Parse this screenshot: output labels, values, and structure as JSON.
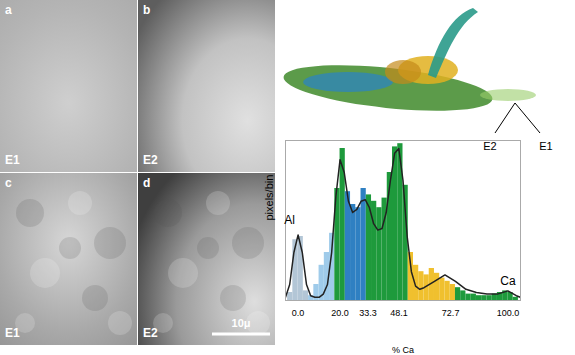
{
  "figure": {
    "panels": [
      {
        "letter": "a",
        "label": "E1"
      },
      {
        "letter": "b",
        "label": "E2"
      },
      {
        "letter": "c",
        "label": "E1"
      },
      {
        "letter": "d",
        "label": "E2"
      }
    ],
    "scale_bar": "10μ",
    "projection_labels": [
      "E2",
      "E1"
    ]
  },
  "chart_data": {
    "type": "histogram",
    "xlabel": "% Ca",
    "ylabel": "pixels/bin",
    "xlim": [
      -6,
      106
    ],
    "ylim": [
      0,
      100
    ],
    "xticks": [
      {
        "value": 0,
        "label": "0.0"
      },
      {
        "value": 20,
        "label": "20.0"
      },
      {
        "value": 33.3,
        "label": "33.3"
      },
      {
        "value": 48.1,
        "label": "48.1"
      },
      {
        "value": 72.7,
        "label": "72.7"
      },
      {
        "value": 100,
        "label": "100.0"
      }
    ],
    "tick_labels": "x",
    "bins": [
      -5,
      -2.5,
      0,
      2.5,
      5,
      7.5,
      10,
      12.5,
      15,
      17.5,
      20,
      22.5,
      25,
      27.5,
      30,
      32.5,
      35,
      37.5,
      40,
      42.5,
      45,
      47.5,
      50,
      52.5,
      55,
      57.5,
      60,
      62.5,
      65,
      67.5,
      70,
      72.5,
      75,
      77.5,
      80,
      82.5,
      85,
      87.5,
      90,
      92.5,
      95,
      97.5,
      100,
      102.5,
      105
    ],
    "counts": [
      5,
      38,
      40,
      6,
      3,
      10,
      22,
      30,
      42,
      70,
      95,
      68,
      60,
      58,
      70,
      66,
      62,
      58,
      64,
      80,
      96,
      98,
      72,
      30,
      22,
      18,
      16,
      20,
      17,
      14,
      12,
      10,
      8,
      6,
      4,
      4,
      3,
      3,
      3,
      4,
      5,
      6,
      5,
      2
    ],
    "colors": [
      "#b3c6d6",
      "#b3c6d6",
      "#b3c6d6",
      "#b3c6d6",
      "#9fcbea",
      "#9fcbea",
      "#9fcbea",
      "#9fcbea",
      "#9fcbea",
      "#1e9a3c",
      "#1e9a3c",
      "#2f80c2",
      "#2f80c2",
      "#2f80c2",
      "#2f80c2",
      "#1e9a3c",
      "#1e9a3c",
      "#1e9a3c",
      "#1e9a3c",
      "#1e9a3c",
      "#1e9a3c",
      "#1e9a3c",
      "#1e9a3c",
      "#f0c02e",
      "#f0c02e",
      "#f0c02e",
      "#f0c02e",
      "#f0c02e",
      "#f0c02e",
      "#f0c02e",
      "#f0c02e",
      "#f0c02e",
      "#1e9a3c",
      "#1e9a3c",
      "#1e9a3c",
      "#1e9a3c",
      "#1e9a3c",
      "#1e9a3c",
      "#1e9a3c",
      "#1e9a3c",
      "#1e9a3c",
      "#1e9a3c",
      "#1e9a3c",
      "#1e9a3c"
    ],
    "curve": {
      "type": "line",
      "color": "#222222",
      "line_style": "solid",
      "x": [
        -6,
        -4,
        -2,
        0,
        2,
        4,
        6,
        8,
        10,
        12,
        14,
        16,
        18,
        20,
        22,
        24,
        26,
        28,
        30,
        32,
        34,
        36,
        38,
        40,
        42,
        44,
        46,
        48,
        50,
        52,
        54,
        56,
        58,
        60,
        65,
        70,
        75,
        80,
        85,
        90,
        95,
        100,
        104,
        106
      ],
      "values": [
        2,
        10,
        30,
        41,
        30,
        10,
        3,
        2,
        2,
        4,
        10,
        30,
        65,
        88,
        80,
        62,
        55,
        57,
        62,
        63,
        58,
        48,
        44,
        45,
        55,
        75,
        92,
        95,
        75,
        40,
        18,
        9,
        7,
        8,
        12,
        16,
        12,
        7,
        5,
        4,
        4,
        6,
        3,
        2
      ]
    },
    "annotations": [
      {
        "text": "Al",
        "x": -4,
        "y": 50
      },
      {
        "text": "Ca",
        "x": 100,
        "y": 12
      }
    ]
  }
}
